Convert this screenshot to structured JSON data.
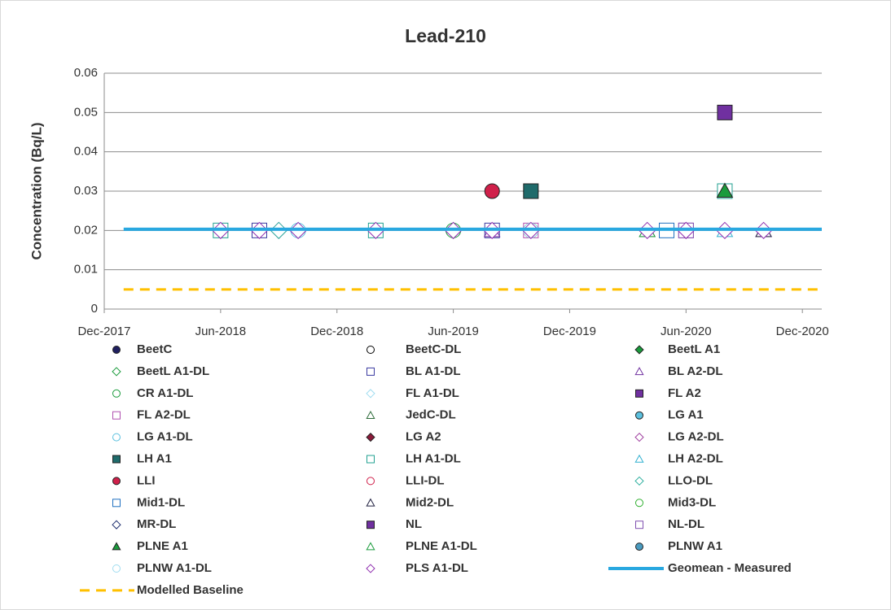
{
  "chart_data": {
    "type": "scatter",
    "title": "Lead-210",
    "y_label": "Concentration (Bq/L)",
    "xlim": [
      "2017-12",
      "2021-01"
    ],
    "xticks": [
      {
        "value": "2017-12",
        "label": "Dec-2017"
      },
      {
        "value": "2018-06",
        "label": "Jun-2018"
      },
      {
        "value": "2018-12",
        "label": "Dec-2018"
      },
      {
        "value": "2019-06",
        "label": "Jun-2019"
      },
      {
        "value": "2019-12",
        "label": "Dec-2019"
      },
      {
        "value": "2020-06",
        "label": "Jun-2020"
      },
      {
        "value": "2020-12",
        "label": "Dec-2020"
      }
    ],
    "ylim": [
      0,
      0.06
    ],
    "yticks": [
      0,
      0.01,
      0.02,
      0.03,
      0.04,
      0.05,
      0.06
    ],
    "grid": true,
    "series": [
      {
        "name": "BeetC",
        "marker": "circle",
        "filled": true,
        "color": "#1f1f5f",
        "x": [],
        "values": []
      },
      {
        "name": "BeetC-DL",
        "marker": "circle",
        "filled": false,
        "color": "#000000",
        "x": [
          "2018-06"
        ],
        "values": [
          0.02
        ]
      },
      {
        "name": "BeetL A1",
        "marker": "diamond",
        "filled": true,
        "color": "#1a9b3c",
        "x": [],
        "values": []
      },
      {
        "name": "BeetL A1-DL",
        "marker": "diamond",
        "filled": false,
        "color": "#1a9b3c",
        "x": [
          "2019-06"
        ],
        "values": [
          0.02
        ]
      },
      {
        "name": "BL A1-DL",
        "marker": "square",
        "filled": false,
        "color": "#3a3aa0",
        "x": [
          "2018-08",
          "2019-08"
        ],
        "values": [
          0.02,
          0.02
        ]
      },
      {
        "name": "BL A2-DL",
        "marker": "triangle",
        "filled": false,
        "color": "#7030a0",
        "x": [
          "2019-08",
          "2020-10"
        ],
        "values": [
          0.02,
          0.02
        ]
      },
      {
        "name": "CR A1-DL",
        "marker": "circle",
        "filled": false,
        "color": "#1a9b3c",
        "x": [
          "2019-06"
        ],
        "values": [
          0.02
        ]
      },
      {
        "name": "FL A1-DL",
        "marker": "diamond",
        "filled": false,
        "color": "#9fdcf0",
        "x": [
          "2018-10"
        ],
        "values": [
          0.02
        ]
      },
      {
        "name": "FL A2",
        "marker": "square",
        "filled": true,
        "color": "#7030a0",
        "x": [],
        "values": []
      },
      {
        "name": "FL A2-DL",
        "marker": "square",
        "filled": false,
        "color": "#b050b0",
        "x": [
          "2019-10",
          "2020-06"
        ],
        "values": [
          0.02,
          0.02
        ]
      },
      {
        "name": "JedC-DL",
        "marker": "triangle",
        "filled": false,
        "color": "#2e6b3a",
        "x": [
          "2020-04"
        ],
        "values": [
          0.02
        ]
      },
      {
        "name": "LG A1",
        "marker": "circle",
        "filled": true,
        "color": "#5bc0de",
        "x": [
          "2019-10"
        ],
        "values": [
          0.03
        ]
      },
      {
        "name": "LG A1-DL",
        "marker": "circle",
        "filled": false,
        "color": "#5bc0de",
        "x": [
          "2018-10"
        ],
        "values": [
          0.02
        ]
      },
      {
        "name": "LG A2",
        "marker": "diamond",
        "filled": true,
        "color": "#8b1a3a",
        "x": [],
        "values": []
      },
      {
        "name": "LG A2-DL",
        "marker": "diamond",
        "filled": false,
        "color": "#a040a0",
        "x": [
          "2018-09"
        ],
        "values": [
          0.02
        ]
      },
      {
        "name": "LH A1",
        "marker": "square",
        "filled": true,
        "color": "#1f6b6b",
        "x": [
          "2019-10"
        ],
        "values": [
          0.03
        ]
      },
      {
        "name": "LH A1-DL",
        "marker": "square",
        "filled": false,
        "color": "#20a090",
        "x": [
          "2018-06",
          "2019-02",
          "2020-08"
        ],
        "values": [
          0.02,
          0.02,
          0.03
        ]
      },
      {
        "name": "LH A2-DL",
        "marker": "triangle",
        "filled": false,
        "color": "#30b0d0",
        "x": [
          "2020-08"
        ],
        "values": [
          0.02
        ]
      },
      {
        "name": "LLI",
        "marker": "circle",
        "filled": true,
        "color": "#d0204a",
        "x": [
          "2019-08"
        ],
        "values": [
          0.03
        ]
      },
      {
        "name": "LLI-DL",
        "marker": "circle",
        "filled": false,
        "color": "#d0204a",
        "x": [
          "2019-10"
        ],
        "values": [
          0.02
        ]
      },
      {
        "name": "LLO-DL",
        "marker": "diamond",
        "filled": false,
        "color": "#30b0a0",
        "x": [
          "2018-09"
        ],
        "values": [
          0.02
        ]
      },
      {
        "name": "Mid1-DL",
        "marker": "square",
        "filled": false,
        "color": "#2070c0",
        "x": [
          "2020-05"
        ],
        "values": [
          0.02
        ]
      },
      {
        "name": "Mid2-DL",
        "marker": "triangle",
        "filled": false,
        "color": "#202040",
        "x": [
          "2020-10"
        ],
        "values": [
          0.02
        ]
      },
      {
        "name": "Mid3-DL",
        "marker": "circle",
        "filled": false,
        "color": "#30b030",
        "x": [
          "2019-10"
        ],
        "values": [
          0.02
        ]
      },
      {
        "name": "MR-DL",
        "marker": "diamond",
        "filled": false,
        "color": "#1f2f6f",
        "x": [
          "2020-06"
        ],
        "values": [
          0.02
        ]
      },
      {
        "name": "NL",
        "marker": "square",
        "filled": true,
        "color": "#7030a0",
        "x": [
          "2020-08"
        ],
        "values": [
          0.05
        ]
      },
      {
        "name": "NL-DL",
        "marker": "square",
        "filled": false,
        "color": "#8050b0",
        "x": [
          "2020-06"
        ],
        "values": [
          0.02
        ]
      },
      {
        "name": "PLNE A1",
        "marker": "triangle",
        "filled": true,
        "color": "#1a9b3c",
        "x": [
          "2020-08"
        ],
        "values": [
          0.03
        ]
      },
      {
        "name": "PLNE A1-DL",
        "marker": "triangle",
        "filled": false,
        "color": "#1a9b3c",
        "x": [
          "2020-04"
        ],
        "values": [
          0.02
        ]
      },
      {
        "name": "PLNW A1",
        "marker": "circle",
        "filled": true,
        "color": "#4a9bc0",
        "x": [],
        "values": []
      },
      {
        "name": "PLNW A1-DL",
        "marker": "circle",
        "filled": false,
        "color": "#9fdcf0",
        "x": [
          "2019-10"
        ],
        "values": [
          0.02
        ]
      },
      {
        "name": "PLS A1-DL",
        "marker": "diamond",
        "filled": false,
        "color": "#9030b0",
        "x": [
          "2018-06",
          "2018-08",
          "2018-10",
          "2019-02",
          "2019-06",
          "2019-08",
          "2019-10",
          "2020-04",
          "2020-06",
          "2020-08",
          "2020-10"
        ],
        "values": [
          0.02,
          0.02,
          0.02,
          0.02,
          0.02,
          0.02,
          0.02,
          0.02,
          0.02,
          0.02,
          0.02
        ]
      },
      {
        "name": "Geomean - Measured",
        "marker": "line",
        "dashed": false,
        "color": "#29a8e0",
        "x": [
          "2018-01",
          "2021-01"
        ],
        "values": [
          0.0203,
          0.0203
        ]
      },
      {
        "name": "Modelled Baseline",
        "marker": "line",
        "dashed": true,
        "color": "#ffc000",
        "x": [
          "2018-01",
          "2021-01"
        ],
        "values": [
          0.005,
          0.005
        ]
      }
    ]
  }
}
